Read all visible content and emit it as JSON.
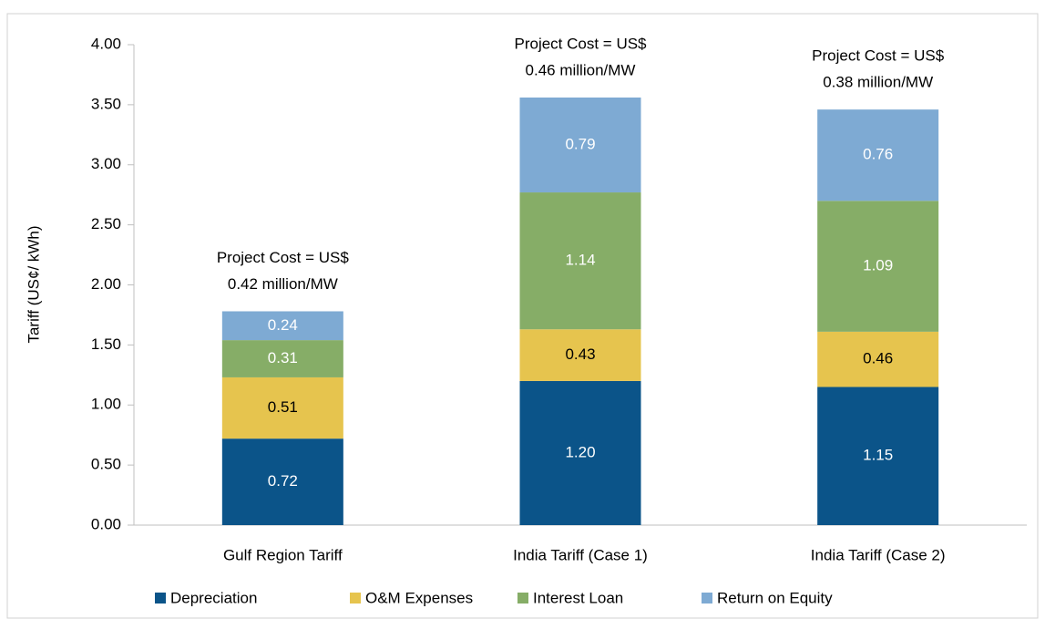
{
  "chart_data": {
    "type": "stacked_bar",
    "y_label": "Tariff (US¢/ kWh)",
    "categories": [
      "Gulf Region Tariff",
      "India Tariff (Case 1)",
      "India Tariff (Case 2)"
    ],
    "series": [
      {
        "name": "Depreciation",
        "color": "#0b5489",
        "label_color": "#ffffff",
        "values": [
          0.72,
          1.2,
          1.15
        ],
        "value_labels": [
          "0.72",
          "1.20",
          "1.15"
        ]
      },
      {
        "name": "O&M Expenses",
        "color": "#e6c44e",
        "label_color": "#000000",
        "values": [
          0.51,
          0.43,
          0.46
        ],
        "value_labels": [
          "0.51",
          "0.43",
          "0.46"
        ]
      },
      {
        "name": "Interest Loan",
        "color": "#86ad67",
        "label_color": "#ffffff",
        "values": [
          0.31,
          1.14,
          1.09
        ],
        "value_labels": [
          "0.31",
          "1.14",
          "1.09"
        ]
      },
      {
        "name": "Return on Equity",
        "color": "#7eaad3",
        "label_color": "#ffffff",
        "values": [
          0.24,
          0.79,
          0.76
        ],
        "value_labels": [
          "0.24",
          "0.79",
          "0.76"
        ]
      }
    ],
    "annotations": [
      [
        "Project Cost = US$",
        "0.42 million/MW"
      ],
      [
        "Project Cost = US$",
        "0.46 million/MW"
      ],
      [
        "Project Cost = US$",
        "0.38 million/MW"
      ]
    ],
    "ylim": [
      0,
      4
    ],
    "yticks": [
      {
        "value": 0,
        "label": "0.00"
      },
      {
        "value": 0.5,
        "label": "0.50"
      },
      {
        "value": 1,
        "label": "1.00"
      },
      {
        "value": 1.5,
        "label": "1.50"
      },
      {
        "value": 2,
        "label": "2.00"
      },
      {
        "value": 2.5,
        "label": "2.50"
      },
      {
        "value": 3,
        "label": "3.00"
      },
      {
        "value": 3.5,
        "label": "3.50"
      },
      {
        "value": 4,
        "label": "4.00"
      }
    ],
    "legend": "bottom"
  }
}
